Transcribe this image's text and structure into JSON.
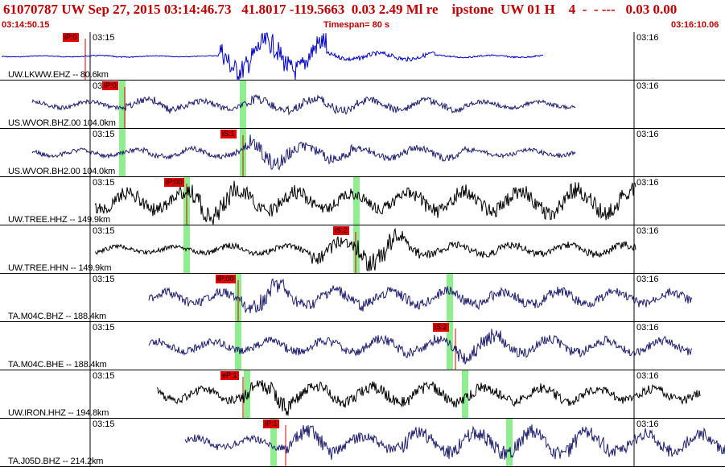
{
  "header": {
    "title": "61070787 UW Sep 27, 2015 03:14:46.73   41.8017 -119.5663  0.03 2.49 Ml re    ipstone  UW 01 H    4  -  - ---   0.03 0.00",
    "start_time": "03:14:50.15",
    "timespan": "Timespan=  80 s",
    "end_time": "03:16:10.06"
  },
  "colors": {
    "header_text": "#c00000",
    "pick_box": "#e00000",
    "green_bar": "#90ee90",
    "trace_blue": "#0000cc",
    "trace_navy": "#202070",
    "trace_black": "#000000"
  },
  "panels": [
    {
      "channel": "UW.LKWW.EHZ -- 80.6km",
      "tick_left": "03:15",
      "tick_right": "03:16",
      "pick": "iP:0",
      "trace_color": "#0000cc"
    },
    {
      "channel": "US.WVOR.BHZ.00 104.0km",
      "tick_left": "03:15",
      "tick_right": "03:16",
      "pick": "iP:0",
      "trace_color": "#202070"
    },
    {
      "channel": "US.WVOR.BH2.00 104.0km",
      "tick_left": "03:15",
      "tick_right": "03:16",
      "pick": "iS:1",
      "trace_color": "#202070"
    },
    {
      "channel": "UW.TREE.HHZ -- 149.9km",
      "tick_left": "03:15",
      "tick_right": "03:16",
      "pick": "iP:00",
      "trace_color": "#000000"
    },
    {
      "channel": "UW.TREE.HHN -- 149.9km",
      "tick_left": "03:15",
      "tick_right": "03:16",
      "pick": "iS:2",
      "trace_color": "#000000"
    },
    {
      "channel": "TA.M04C.BHZ -- 188.4km",
      "tick_left": "03:15",
      "tick_right": "03:16",
      "pick": "iP:00",
      "trace_color": "#202070"
    },
    {
      "channel": "TA.M04C.BHE -- 188.4km",
      "tick_left": "03:15",
      "tick_right": "03:16",
      "pick": "iS:2",
      "trace_color": "#202070"
    },
    {
      "channel": "UW.IRON.HHZ -- 194.8km",
      "tick_left": "03:15",
      "tick_right": "03:16",
      "pick": "eP:1",
      "trace_color": "#000000"
    },
    {
      "channel": "TA.J05D.BHZ -- 214.2km",
      "tick_left": "03:15",
      "tick_right": "03:16",
      "pick": "iP:1",
      "trace_color": "#202070"
    }
  ]
}
